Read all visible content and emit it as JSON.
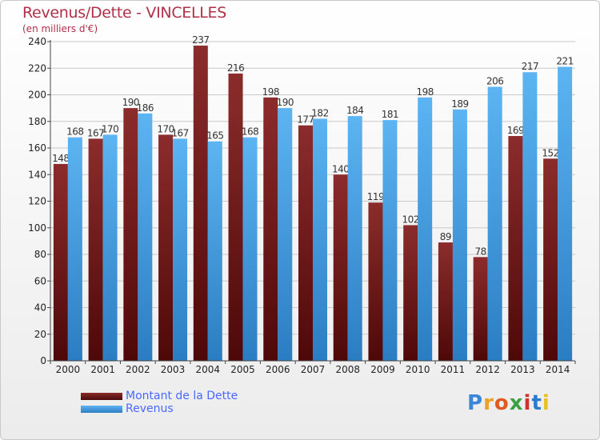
{
  "header": {
    "title": "Revenus/Dette - VINCELLES",
    "subtitle": "(en milliers d'€)"
  },
  "legend": {
    "debt_label": "Montant de la Dette",
    "revenue_label": "Revenus"
  },
  "logo": {
    "text": "Proxiti"
  },
  "colors": {
    "debt": "#7a2020",
    "revenue": "#4aa0e6",
    "title": "#b03048",
    "legend_text": "#4a68ff"
  },
  "chart_data": {
    "type": "bar",
    "title": "Revenus/Dette - VINCELLES",
    "ylabel": "(en milliers d'€)",
    "xlabel": "",
    "ylim": [
      0,
      240
    ],
    "yticks": [
      0,
      20,
      40,
      60,
      80,
      100,
      120,
      140,
      160,
      180,
      200,
      220,
      240
    ],
    "grid": true,
    "legend_position": "bottom-left",
    "categories": [
      "2000",
      "2001",
      "2002",
      "2003",
      "2004",
      "2005",
      "2006",
      "2007",
      "2008",
      "2009",
      "2010",
      "2011",
      "2012",
      "2013",
      "2014"
    ],
    "series": [
      {
        "name": "Montant de la Dette",
        "values": [
          148,
          167,
          190,
          170,
          237,
          216,
          198,
          177,
          140,
          119,
          102,
          89,
          78,
          169,
          152
        ]
      },
      {
        "name": "Revenus",
        "values": [
          168,
          170,
          186,
          167,
          165,
          168,
          190,
          182,
          184,
          181,
          198,
          189,
          206,
          217,
          221
        ]
      }
    ]
  }
}
